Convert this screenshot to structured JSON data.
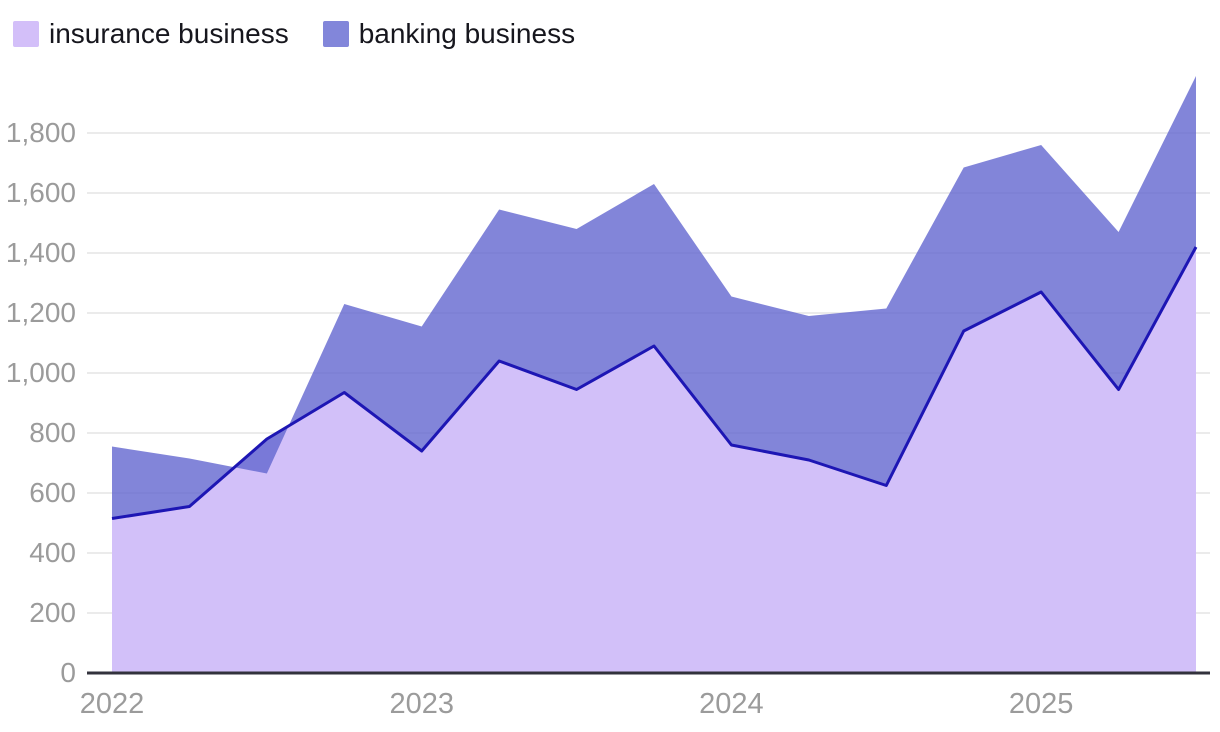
{
  "legend": {
    "items": [
      {
        "label": "insurance business",
        "swatch_color": "#d3bff9"
      },
      {
        "label": "banking business",
        "swatch_color": "#8286da"
      }
    ]
  },
  "chart_data": {
    "type": "area",
    "title": "",
    "xlabel": "",
    "ylabel": "",
    "categories": [
      "2022 Q1",
      "2022 Q2",
      "2022 Q3",
      "2022 Q4",
      "2023 Q1",
      "2023 Q2",
      "2023 Q3",
      "2023 Q4",
      "2024 Q1",
      "2024 Q2",
      "2024 Q3",
      "2024 Q4",
      "2025 Q1",
      "2025 Q2",
      "2025 Q3"
    ],
    "x_tick_labels": [
      "2022",
      "2023",
      "2024",
      "2025"
    ],
    "x_tick_indices": [
      0,
      4,
      8,
      12
    ],
    "yticks": [
      0,
      200,
      400,
      600,
      800,
      1000,
      1200,
      1400,
      1600,
      1800
    ],
    "ylim": [
      0,
      2000
    ],
    "grid": true,
    "legend_position": "top-left",
    "series": [
      {
        "name": "insurance business",
        "fill_color": "#d2c0f9",
        "line_color": "#1d16b4",
        "values": [
          515,
          555,
          780,
          935,
          740,
          1040,
          945,
          1090,
          760,
          710,
          625,
          1140,
          1270,
          945,
          1420
        ]
      },
      {
        "name": "banking business",
        "fill_color": "#6366cf",
        "fill_opacity": 0.8,
        "render": "band-from-first-series",
        "values": [
          755,
          715,
          665,
          1230,
          1155,
          1545,
          1480,
          1630,
          1255,
          1190,
          1215,
          1685,
          1760,
          1470,
          1990
        ]
      }
    ],
    "colors": {
      "grid_line": "#ebebeb",
      "axis_line": "#32323c",
      "tick_text": "#9b9b9b"
    }
  }
}
